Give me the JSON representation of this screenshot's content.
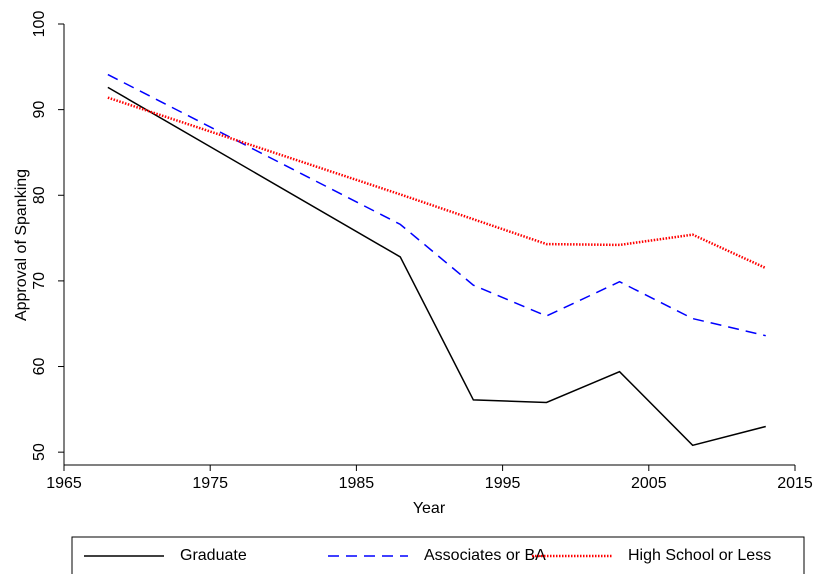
{
  "chart_data": {
    "type": "line",
    "x_label": "Year",
    "y_label": "Approval of Spanking",
    "x": [
      1968,
      1988,
      1993,
      1998,
      2003,
      2008,
      2013
    ],
    "series": [
      {
        "name": "Graduate",
        "color": "#000000",
        "dash": "solid",
        "values": [
          92.6,
          72.8,
          56.1,
          55.8,
          59.4,
          50.8,
          53.0
        ]
      },
      {
        "name": "Associates or BA",
        "color": "#0000ff",
        "dash": "dashed",
        "values": [
          94.1,
          76.6,
          69.5,
          65.9,
          69.9,
          65.6,
          63.6
        ]
      },
      {
        "name": "High School or Less",
        "color": "#ff0000",
        "dash": "dotted",
        "values": [
          91.4,
          80.1,
          77.2,
          74.3,
          74.2,
          75.4,
          71.5
        ]
      }
    ],
    "xlim": [
      1965,
      2015
    ],
    "xticks": [
      1965,
      1975,
      1985,
      1995,
      2005,
      2015
    ],
    "ylim": [
      48.5,
      100
    ],
    "yticks": [
      50,
      60,
      70,
      80,
      90,
      100
    ],
    "grid": false,
    "legend": "bottom"
  }
}
